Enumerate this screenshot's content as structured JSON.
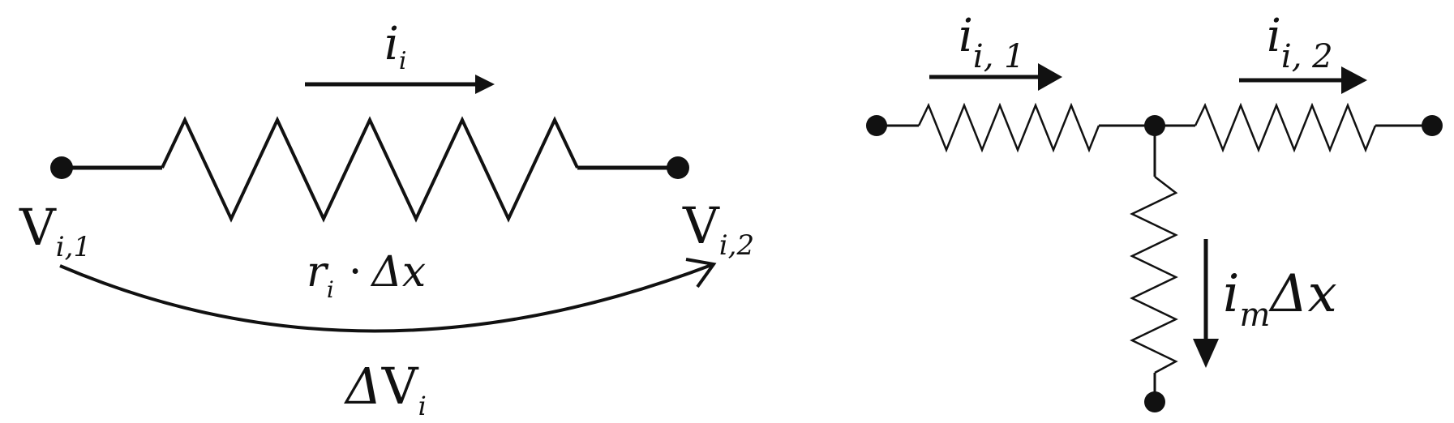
{
  "left_circuit": {
    "current": {
      "symbol": "i",
      "subscript": "i"
    },
    "node_1": {
      "symbol": "V",
      "subscript": "i,1"
    },
    "node_2": {
      "symbol": "V",
      "subscript": "i,2"
    },
    "resistance": {
      "symbol": "r",
      "subscript": "i",
      "operator": "·",
      "delta": "Δ",
      "variable": "x"
    },
    "potential_drop": {
      "delta": "Δ",
      "symbol": "V",
      "subscript": "i"
    }
  },
  "right_circuit": {
    "current_1": {
      "symbol": "i",
      "subscript": "i, 1"
    },
    "current_2": {
      "symbol": "i",
      "subscript": "i, 2"
    },
    "membrane_current": {
      "symbol": "i",
      "subscript": "m",
      "delta": "Δ",
      "variable": "x"
    }
  },
  "colors": {
    "stroke": "#111111",
    "background": "#ffffff"
  }
}
